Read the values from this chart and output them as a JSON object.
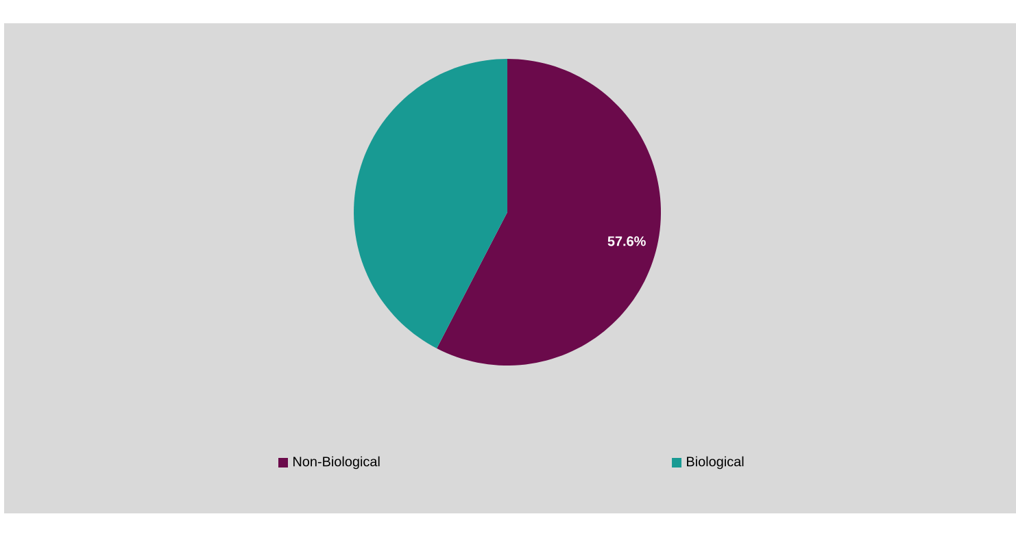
{
  "chart_data": {
    "type": "pie",
    "categories": [
      "Non-Biological",
      "Biological"
    ],
    "values": [
      57.6,
      42.4
    ],
    "colors": [
      "#6b0a4b",
      "#189a93"
    ],
    "value_labels": [
      "57.6%",
      null
    ],
    "legend": "bottom"
  }
}
